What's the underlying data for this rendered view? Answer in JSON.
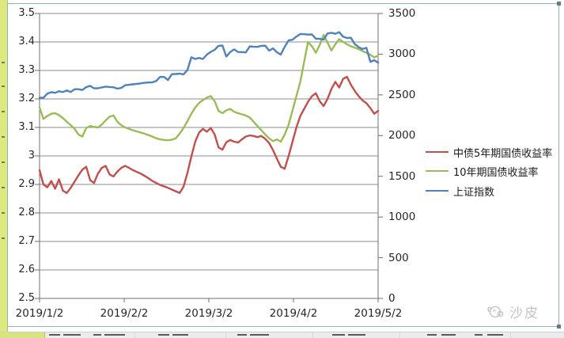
{
  "watermark": {
    "text": "沙皮"
  },
  "chart_data": {
    "type": "line",
    "title": "",
    "xlabel": "",
    "ylabel_left": "",
    "ylabel_right": "",
    "grid": true,
    "legend_position": "right",
    "x_tick_labels": [
      "2019/1/2",
      "2019/2/2",
      "2019/3/2",
      "2019/4/2",
      "2019/5/2"
    ],
    "left_axis": {
      "min": 2.5,
      "max": 3.5,
      "step": 0.1,
      "tick_labels": [
        "3.5",
        "3.4",
        "3.3",
        "3.2",
        "3.1",
        "3",
        "2.9",
        "2.8",
        "2.7",
        "2.6",
        "2.5"
      ]
    },
    "right_axis": {
      "min": 0,
      "max": 3500,
      "step": 500,
      "tick_labels": [
        "3500",
        "3000",
        "2500",
        "2000",
        "1500",
        "1000",
        "500",
        "0"
      ]
    },
    "series": [
      {
        "name": "中债5年期国债收益率",
        "axis": "left",
        "color": "#c0504d",
        "values": [
          2.95,
          2.9,
          2.89,
          2.912,
          2.885,
          2.918,
          2.878,
          2.87,
          2.888,
          2.91,
          2.932,
          2.952,
          2.962,
          2.915,
          2.905,
          2.938,
          2.958,
          2.965,
          2.935,
          2.928,
          2.945,
          2.958,
          2.965,
          2.958,
          2.95,
          2.944,
          2.938,
          2.93,
          2.922,
          2.912,
          2.905,
          2.898,
          2.893,
          2.888,
          2.882,
          2.876,
          2.87,
          2.892,
          2.94,
          2.998,
          3.05,
          3.082,
          3.095,
          3.085,
          3.098,
          3.075,
          3.03,
          3.022,
          3.048,
          3.056,
          3.05,
          3.047,
          3.058,
          3.068,
          3.072,
          3.07,
          3.066,
          3.07,
          3.06,
          3.045,
          3.02,
          2.99,
          2.962,
          2.955,
          3.0,
          3.05,
          3.1,
          3.14,
          3.165,
          3.19,
          3.21,
          3.22,
          3.192,
          3.175,
          3.2,
          3.235,
          3.26,
          3.24,
          3.27,
          3.278,
          3.25,
          3.228,
          3.21,
          3.195,
          3.185,
          3.168,
          3.148,
          3.158
        ]
      },
      {
        "name": "10年期国债收益率",
        "axis": "left",
        "color": "#9bbb59",
        "values": [
          3.17,
          3.13,
          3.14,
          3.148,
          3.15,
          3.143,
          3.133,
          3.12,
          3.108,
          3.095,
          3.075,
          3.068,
          3.098,
          3.105,
          3.102,
          3.1,
          3.11,
          3.125,
          3.138,
          3.142,
          3.12,
          3.108,
          3.1,
          3.095,
          3.09,
          3.086,
          3.082,
          3.078,
          3.073,
          3.068,
          3.062,
          3.058,
          3.056,
          3.055,
          3.057,
          3.062,
          3.078,
          3.098,
          3.122,
          3.148,
          3.17,
          3.186,
          3.196,
          3.205,
          3.21,
          3.192,
          3.158,
          3.15,
          3.16,
          3.165,
          3.155,
          3.15,
          3.146,
          3.142,
          3.135,
          3.12,
          3.105,
          3.09,
          3.075,
          3.062,
          3.052,
          3.058,
          3.05,
          3.075,
          3.11,
          3.16,
          3.21,
          3.26,
          3.33,
          3.4,
          3.385,
          3.362,
          3.39,
          3.425,
          3.398,
          3.37,
          3.392,
          3.41,
          3.4,
          3.392,
          3.385,
          3.38,
          3.375,
          3.368,
          3.362,
          3.355,
          3.346,
          3.352
        ]
      },
      {
        "name": "上证指数",
        "axis": "right",
        "color": "#4f81bd",
        "values": [
          2465,
          2464,
          2515,
          2533,
          2526,
          2544,
          2535,
          2554,
          2536,
          2570,
          2570,
          2560,
          2596,
          2610,
          2580,
          2581,
          2592,
          2602,
          2597,
          2594,
          2576,
          2585,
          2618,
          2624,
          2630,
          2636,
          2642,
          2648,
          2652,
          2654,
          2672,
          2721,
          2720,
          2682,
          2754,
          2756,
          2761,
          2752,
          2804,
          2961,
          2941,
          2954,
          2941,
          2994,
          3028,
          3054,
          3102,
          3106,
          2970,
          3027,
          3060,
          3027,
          3026,
          3022,
          3096,
          3091,
          3090,
          3102,
          3104,
          3043,
          3071,
          3023,
          2995,
          3091,
          3170,
          3177,
          3216,
          3247,
          3245,
          3240,
          3242,
          3190,
          3189,
          3178,
          3254,
          3263,
          3250,
          3271,
          3215,
          3199,
          3202,
          3124,
          3086,
          3063,
          3078,
          2906,
          2926,
          2894
        ]
      }
    ]
  }
}
